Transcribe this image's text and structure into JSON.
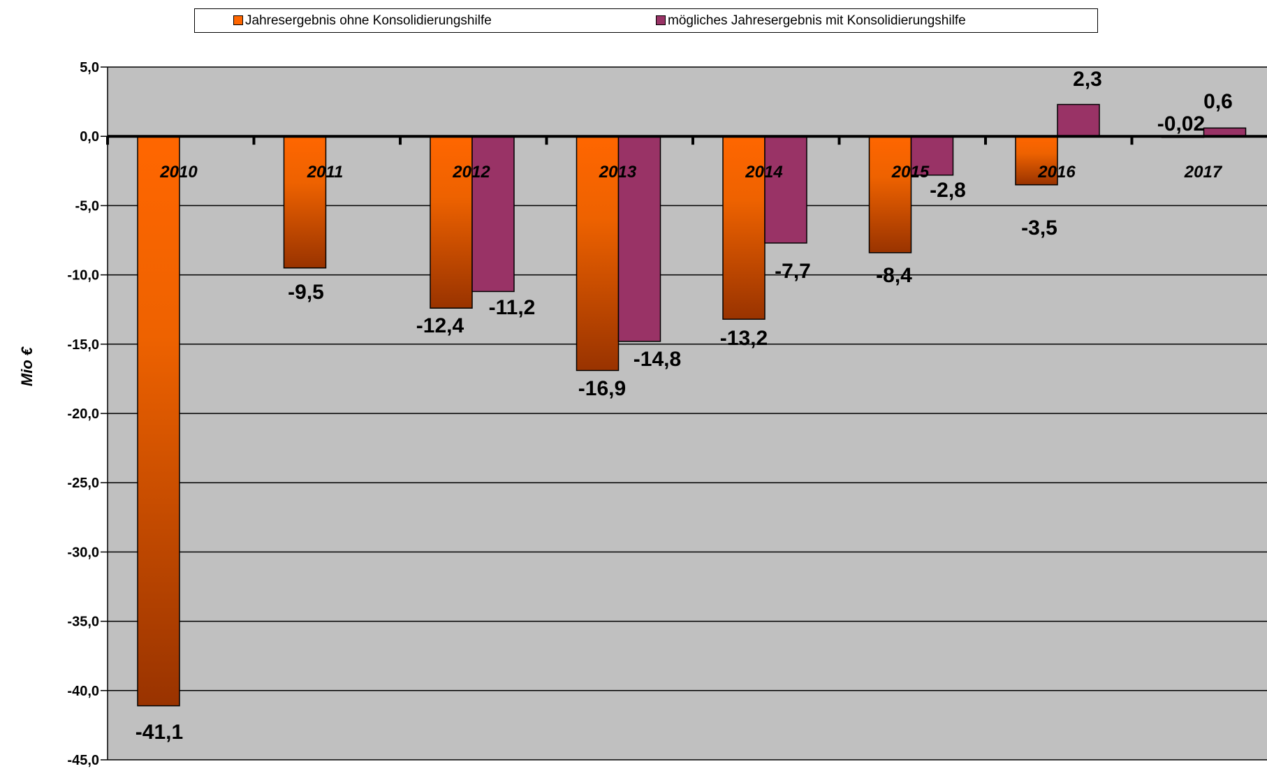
{
  "chart_data": {
    "type": "bar",
    "categories": [
      "2010",
      "2011",
      "2012",
      "2013",
      "2014",
      "2015",
      "2016",
      "2017"
    ],
    "series": [
      {
        "name": "Jahresergebnis ohne Konsolidierungshilfe",
        "color": "#ff6600",
        "color_dark": "#993300",
        "values": [
          -41.1,
          -9.5,
          -12.4,
          -16.9,
          -13.2,
          -8.4,
          -3.5,
          -0.02
        ],
        "labels": [
          "-41,1",
          "-9,5",
          "-12,4",
          "-16,9",
          "-13,2",
          "-8,4",
          "-3,5",
          "-0,02"
        ]
      },
      {
        "name": "mögliches Jahresergebnis mit Konsolidierungshilfe",
        "color": "#993366",
        "values": [
          null,
          null,
          -11.2,
          -14.8,
          -7.7,
          -2.8,
          2.3,
          0.6
        ],
        "labels": [
          "",
          "",
          "-11,2",
          "-14,8",
          "-7,7",
          "-2,8",
          "2,3",
          "0,6"
        ]
      }
    ],
    "ylabel": "Mio €",
    "ylim": [
      -45,
      5
    ],
    "yticks": [
      "5,0",
      "0,0",
      "-5,0",
      "-10,0",
      "-15,0",
      "-20,0",
      "-25,0",
      "-30,0",
      "-35,0",
      "-40,0",
      "-45,0"
    ],
    "ytick_values": [
      5,
      0,
      -5,
      -10,
      -15,
      -20,
      -25,
      -30,
      -35,
      -40,
      -45
    ],
    "grid": true,
    "legend": "top",
    "plot_background": "#c0c0c0"
  }
}
